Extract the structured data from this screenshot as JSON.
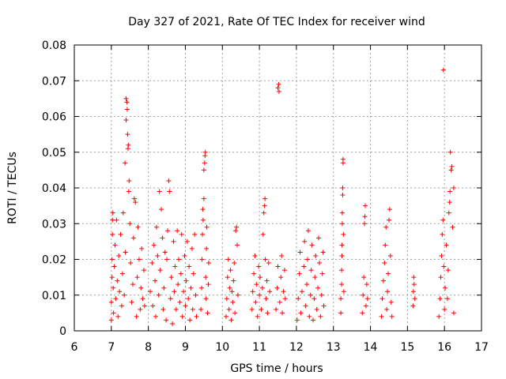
{
  "chart_data": {
    "type": "scatter",
    "title": "Day 327 of 2021, Rate Of TEC Index for receiver wind",
    "xlabel": "GPS time / hours",
    "ylabel": "ROTI / TECUs",
    "xlim": [
      6,
      17
    ],
    "ylim": [
      0,
      0.08
    ],
    "x_ticks": [
      "6",
      "7",
      "8",
      "9",
      "10",
      "11",
      "12",
      "13",
      "14",
      "15",
      "16",
      "17"
    ],
    "y_ticks": [
      "0",
      "0.01",
      "0.02",
      "0.03",
      "0.04",
      "0.05",
      "0.06",
      "0.07",
      "0.08"
    ],
    "grid": true,
    "marker": "+",
    "color": "#ff0000",
    "series": [
      {
        "points": [
          [
            7.0,
            0.003
          ],
          [
            7.0,
            0.008
          ],
          [
            7.02,
            0.015
          ],
          [
            7.02,
            0.02
          ],
          [
            7.03,
            0.027
          ],
          [
            7.03,
            0.031
          ],
          [
            7.04,
            0.033
          ],
          [
            7.05,
            0.012
          ],
          [
            7.06,
            0.005
          ],
          [
            7.08,
            0.018
          ],
          [
            7.1,
            0.024
          ],
          [
            7.12,
            0.009
          ],
          [
            7.14,
            0.031
          ],
          [
            7.16,
            0.014
          ],
          [
            7.18,
            0.004
          ],
          [
            7.2,
            0.021
          ],
          [
            7.22,
            0.011
          ],
          [
            7.25,
            0.027
          ],
          [
            7.28,
            0.007
          ],
          [
            7.3,
            0.016
          ],
          [
            7.32,
            0.033
          ],
          [
            7.35,
            0.01
          ],
          [
            7.37,
            0.047
          ],
          [
            7.38,
            0.022
          ],
          [
            7.4,
            0.065
          ],
          [
            7.4,
            0.059
          ],
          [
            7.42,
            0.064
          ],
          [
            7.43,
            0.062
          ],
          [
            7.44,
            0.055
          ],
          [
            7.45,
            0.051
          ],
          [
            7.46,
            0.052
          ],
          [
            7.47,
            0.039
          ],
          [
            7.48,
            0.042
          ],
          [
            7.5,
            0.03
          ],
          [
            7.52,
            0.019
          ],
          [
            7.55,
            0.008
          ],
          [
            7.58,
            0.013
          ],
          [
            7.6,
            0.026
          ],
          [
            7.62,
            0.037
          ],
          [
            7.65,
            0.036
          ],
          [
            7.68,
            0.004
          ],
          [
            7.7,
            0.015
          ],
          [
            7.72,
            0.029
          ],
          [
            7.75,
            0.02
          ],
          [
            7.78,
            0.006
          ],
          [
            7.8,
            0.012
          ],
          [
            7.82,
            0.023
          ],
          [
            7.85,
            0.009
          ],
          [
            7.88,
            0.017
          ],
          [
            7.9,
            0.007
          ],
          [
            8.05,
            0.011
          ],
          [
            8.1,
            0.019
          ],
          [
            8.12,
            0.007
          ],
          [
            8.15,
            0.024
          ],
          [
            8.18,
            0.014
          ],
          [
            8.2,
            0.004
          ],
          [
            8.22,
            0.029
          ],
          [
            8.25,
            0.021
          ],
          [
            8.28,
            0.01
          ],
          [
            8.3,
            0.039
          ],
          [
            8.32,
            0.017
          ],
          [
            8.35,
            0.034
          ],
          [
            8.38,
            0.026
          ],
          [
            8.4,
            0.006
          ],
          [
            8.42,
            0.012
          ],
          [
            8.45,
            0.022
          ],
          [
            8.48,
            0.003
          ],
          [
            8.5,
            0.02
          ],
          [
            8.52,
            0.028
          ],
          [
            8.55,
            0.042
          ],
          [
            8.57,
            0.039
          ],
          [
            8.6,
            0.009
          ],
          [
            8.62,
            0.015
          ],
          [
            8.65,
            0.002
          ],
          [
            8.68,
            0.025
          ],
          [
            8.7,
            0.011
          ],
          [
            8.72,
            0.018
          ],
          [
            8.75,
            0.006
          ],
          [
            8.78,
            0.028
          ],
          [
            8.8,
            0.013
          ],
          [
            8.82,
            0.02
          ],
          [
            8.85,
            0.008
          ],
          [
            8.88,
            0.016
          ],
          [
            8.9,
            0.027
          ],
          [
            8.92,
            0.004
          ],
          [
            8.95,
            0.011
          ],
          [
            8.98,
            0.021
          ],
          [
            9.0,
            0.007
          ],
          [
            9.02,
            0.014
          ],
          [
            9.05,
            0.025
          ],
          [
            9.08,
            0.009
          ],
          [
            9.1,
            0.018
          ],
          [
            9.12,
            0.003
          ],
          [
            9.15,
            0.012
          ],
          [
            9.18,
            0.023
          ],
          [
            9.2,
            0.006
          ],
          [
            9.22,
            0.016
          ],
          [
            9.25,
            0.027
          ],
          [
            9.28,
            0.01
          ],
          [
            9.3,
            0.004
          ],
          [
            9.42,
            0.006
          ],
          [
            9.44,
            0.012
          ],
          [
            9.45,
            0.02
          ],
          [
            9.46,
            0.027
          ],
          [
            9.47,
            0.034
          ],
          [
            9.48,
            0.031
          ],
          [
            9.5,
            0.037
          ],
          [
            9.5,
            0.045
          ],
          [
            9.52,
            0.047
          ],
          [
            9.53,
            0.049
          ],
          [
            9.54,
            0.05
          ],
          [
            9.55,
            0.015
          ],
          [
            9.56,
            0.009
          ],
          [
            9.57,
            0.023
          ],
          [
            9.58,
            0.029
          ],
          [
            9.6,
            0.005
          ],
          [
            9.62,
            0.013
          ],
          [
            9.63,
            0.019
          ],
          [
            10.1,
            0.004
          ],
          [
            10.12,
            0.009
          ],
          [
            10.14,
            0.015
          ],
          [
            10.16,
            0.02
          ],
          [
            10.18,
            0.006
          ],
          [
            10.2,
            0.012
          ],
          [
            10.22,
            0.017
          ],
          [
            10.24,
            0.003
          ],
          [
            10.26,
            0.011
          ],
          [
            10.28,
            0.008
          ],
          [
            10.3,
            0.014
          ],
          [
            10.32,
            0.019
          ],
          [
            10.34,
            0.005
          ],
          [
            10.36,
            0.028
          ],
          [
            10.38,
            0.029
          ],
          [
            10.4,
            0.024
          ],
          [
            10.42,
            0.01
          ],
          [
            10.8,
            0.006
          ],
          [
            10.82,
            0.011
          ],
          [
            10.85,
            0.016
          ],
          [
            10.88,
            0.021
          ],
          [
            10.9,
            0.008
          ],
          [
            10.92,
            0.013
          ],
          [
            10.95,
            0.004
          ],
          [
            10.98,
            0.018
          ],
          [
            11.0,
            0.01
          ],
          [
            11.02,
            0.015
          ],
          [
            11.05,
            0.006
          ],
          [
            11.08,
            0.012
          ],
          [
            11.1,
            0.027
          ],
          [
            11.12,
            0.033
          ],
          [
            11.14,
            0.035
          ],
          [
            11.15,
            0.037
          ],
          [
            11.16,
            0.02
          ],
          [
            11.18,
            0.009
          ],
          [
            11.2,
            0.014
          ],
          [
            11.22,
            0.005
          ],
          [
            11.25,
            0.019
          ],
          [
            11.28,
            0.011
          ],
          [
            11.45,
            0.006
          ],
          [
            11.48,
            0.012
          ],
          [
            11.5,
            0.018
          ],
          [
            11.5,
            0.068
          ],
          [
            11.52,
            0.069
          ],
          [
            11.53,
            0.067
          ],
          [
            11.55,
            0.008
          ],
          [
            11.58,
            0.015
          ],
          [
            11.6,
            0.021
          ],
          [
            11.62,
            0.005
          ],
          [
            11.65,
            0.011
          ],
          [
            11.68,
            0.017
          ],
          [
            11.7,
            0.009
          ],
          [
            12.02,
            0.003
          ],
          [
            12.05,
            0.009
          ],
          [
            12.08,
            0.016
          ],
          [
            12.1,
            0.022
          ],
          [
            12.12,
            0.005
          ],
          [
            12.15,
            0.011
          ],
          [
            12.2,
            0.018
          ],
          [
            12.22,
            0.025
          ],
          [
            12.25,
            0.007
          ],
          [
            12.28,
            0.013
          ],
          [
            12.3,
            0.02
          ],
          [
            12.32,
            0.028
          ],
          [
            12.35,
            0.004
          ],
          [
            12.38,
            0.01
          ],
          [
            12.4,
            0.017
          ],
          [
            12.42,
            0.024
          ],
          [
            12.45,
            0.003
          ],
          [
            12.48,
            0.009
          ],
          [
            12.5,
            0.015
          ],
          [
            12.52,
            0.021
          ],
          [
            12.55,
            0.006
          ],
          [
            12.58,
            0.012
          ],
          [
            12.6,
            0.026
          ],
          [
            12.62,
            0.019
          ],
          [
            12.65,
            0.004
          ],
          [
            12.68,
            0.01
          ],
          [
            12.7,
            0.016
          ],
          [
            12.72,
            0.022
          ],
          [
            12.74,
            0.007
          ],
          [
            13.2,
            0.005
          ],
          [
            13.2,
            0.009
          ],
          [
            13.22,
            0.013
          ],
          [
            13.22,
            0.017
          ],
          [
            13.23,
            0.021
          ],
          [
            13.23,
            0.024
          ],
          [
            13.24,
            0.03
          ],
          [
            13.24,
            0.033
          ],
          [
            13.25,
            0.038
          ],
          [
            13.25,
            0.04
          ],
          [
            13.26,
            0.047
          ],
          [
            13.26,
            0.048
          ],
          [
            13.27,
            0.027
          ],
          [
            13.28,
            0.011
          ],
          [
            13.78,
            0.005
          ],
          [
            13.8,
            0.01
          ],
          [
            13.82,
            0.015
          ],
          [
            13.84,
            0.03
          ],
          [
            13.85,
            0.032
          ],
          [
            13.86,
            0.035
          ],
          [
            13.88,
            0.007
          ],
          [
            13.9,
            0.013
          ],
          [
            13.92,
            0.009
          ],
          [
            14.3,
            0.004
          ],
          [
            14.32,
            0.009
          ],
          [
            14.35,
            0.014
          ],
          [
            14.38,
            0.019
          ],
          [
            14.4,
            0.024
          ],
          [
            14.42,
            0.029
          ],
          [
            14.44,
            0.006
          ],
          [
            14.46,
            0.011
          ],
          [
            14.48,
            0.016
          ],
          [
            14.5,
            0.031
          ],
          [
            14.52,
            0.034
          ],
          [
            14.54,
            0.021
          ],
          [
            14.56,
            0.008
          ],
          [
            14.58,
            0.004
          ],
          [
            15.15,
            0.007
          ],
          [
            15.16,
            0.011
          ],
          [
            15.17,
            0.015
          ],
          [
            15.18,
            0.013
          ],
          [
            15.2,
            0.009
          ],
          [
            15.85,
            0.004
          ],
          [
            15.88,
            0.009
          ],
          [
            15.9,
            0.015
          ],
          [
            15.92,
            0.021
          ],
          [
            15.94,
            0.027
          ],
          [
            15.96,
            0.031
          ],
          [
            15.97,
            0.073
          ],
          [
            15.98,
            0.018
          ],
          [
            16.0,
            0.006
          ],
          [
            16.02,
            0.012
          ],
          [
            16.05,
            0.024
          ],
          [
            16.08,
            0.009
          ],
          [
            16.1,
            0.017
          ],
          [
            16.12,
            0.033
          ],
          [
            16.14,
            0.036
          ],
          [
            16.15,
            0.039
          ],
          [
            16.16,
            0.05
          ],
          [
            16.18,
            0.045
          ],
          [
            16.2,
            0.046
          ],
          [
            16.22,
            0.029
          ],
          [
            16.25,
            0.04
          ],
          [
            16.25,
            0.005
          ]
        ]
      }
    ]
  }
}
